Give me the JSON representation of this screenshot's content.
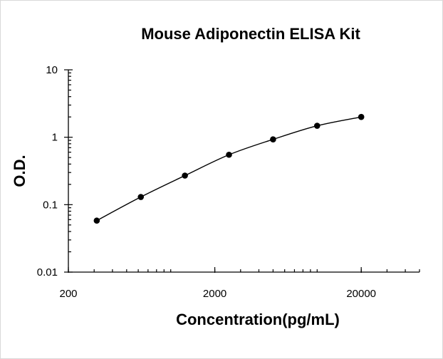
{
  "chart_data": {
    "type": "scatter",
    "title": "Mouse Adiponectin ELISA Kit",
    "xlabel": "Concentration(pg/mL)",
    "ylabel": "O.D.",
    "x_scale": "log",
    "y_scale": "log",
    "xlim": [
      200,
      50000
    ],
    "ylim": [
      0.01,
      10
    ],
    "x_ticks": [
      {
        "value": 200,
        "label": "200"
      },
      {
        "value": 2000,
        "label": "2000"
      },
      {
        "value": 20000,
        "label": "20000"
      }
    ],
    "y_ticks": [
      {
        "value": 0.01,
        "label": "0.01"
      },
      {
        "value": 0.1,
        "label": "0.1"
      },
      {
        "value": 1,
        "label": "1"
      },
      {
        "value": 10,
        "label": "10"
      }
    ],
    "grid": false,
    "legend": false,
    "series": [
      {
        "x": [
          312.5,
          625,
          1250,
          2500,
          5000,
          10000,
          20000
        ],
        "y": [
          0.058,
          0.13,
          0.27,
          0.55,
          0.93,
          1.48,
          2.0
        ]
      }
    ]
  }
}
